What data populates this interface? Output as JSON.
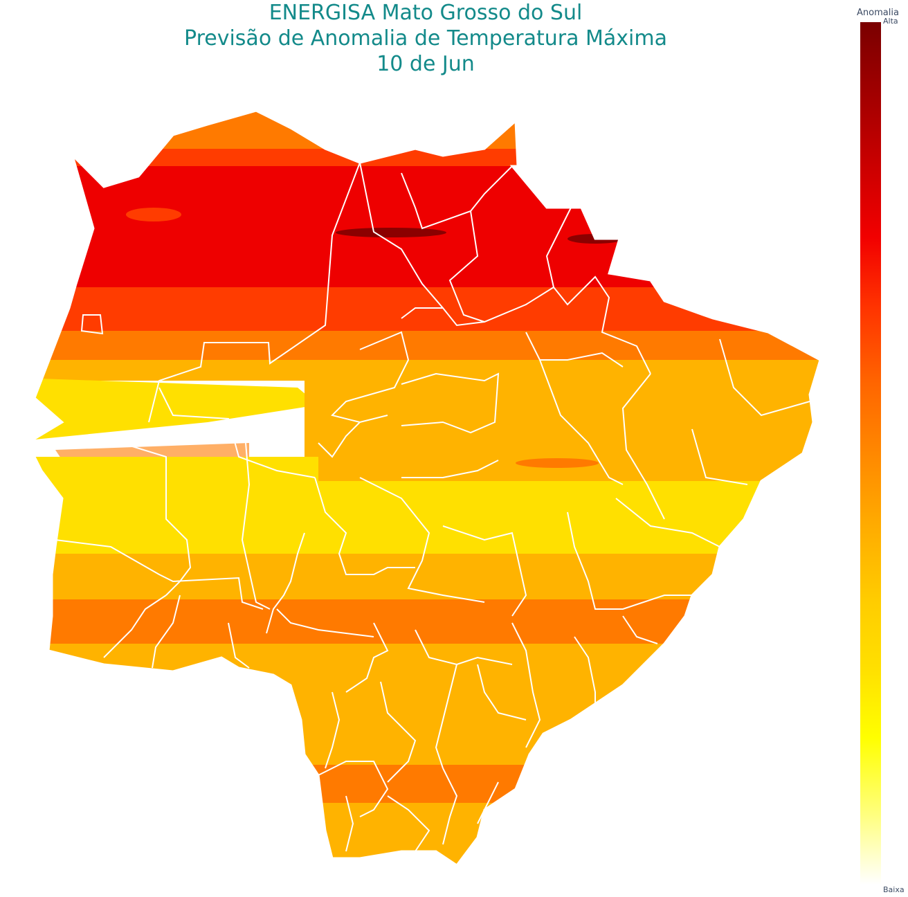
{
  "title": {
    "line1": "ENERGISA Mato Grosso do Sul",
    "line2": "Previsão de Anomalia de Temperatura Máxima",
    "line3": "10 de Jun"
  },
  "legend": {
    "title": "Anomalia",
    "high_label": "Alta",
    "low_label": "Baixa",
    "scale_colors": [
      "#7a0000",
      "#a00000",
      "#cc0000",
      "#f20000",
      "#ff3300",
      "#ff6600",
      "#ff8800",
      "#ffaa00",
      "#ffcc00",
      "#ffe000",
      "#ffff00",
      "#ffff80",
      "#ffffff"
    ]
  },
  "map": {
    "region": "Mato Grosso do Sul",
    "band_colors": {
      "very_high": "#8b0000",
      "high": "#ee0000",
      "medium_high": "#ff3c00",
      "medium": "#ff7a00",
      "moderate": "#ffb300",
      "low": "#ffe000",
      "boundary": "#ffffff"
    }
  }
}
